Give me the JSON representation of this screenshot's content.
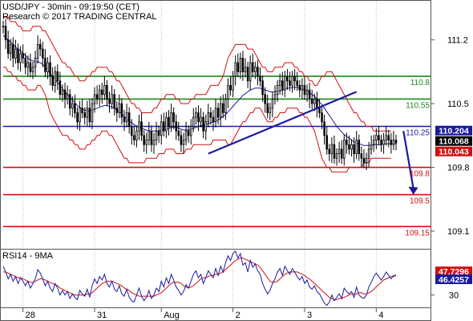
{
  "header": {
    "title": "USD/JPY - 30min - 09:19:50 (CET)",
    "copyright": "Research © 2017 TRADING CENTRAL"
  },
  "colors": {
    "resistance": "#1a8a1a",
    "pivot": "#1a1aa0",
    "support": "#d01010",
    "price": "#000000",
    "bollinger": "#d01010",
    "moving_average": "#1a1aa0",
    "rsi": "#1a1aa0",
    "rsi_signal": "#d01010",
    "trendline": "#1a1aa0",
    "arrow": "#1a1aa0",
    "grid": "#bbbbbb"
  },
  "chart_data": [
    {
      "type": "candlestick",
      "title": "USD/JPY - 30min - 09:19:50 (CET)",
      "ylim": [
        108.95,
        111.55
      ],
      "y_ticks": [
        109.1,
        109.8,
        110.5,
        111.2
      ],
      "x_ticks": [
        "28",
        "31",
        "Aug",
        "2",
        "3",
        "4"
      ],
      "x_tick_index": [
        8,
        37,
        64,
        93,
        122,
        151
      ],
      "close": [
        111.35,
        111.2,
        111.05,
        111.15,
        111.0,
        111.1,
        110.95,
        111.05,
        111.0,
        110.9,
        110.95,
        110.85,
        110.9,
        111.0,
        111.15,
        111.1,
        111.0,
        110.85,
        110.95,
        110.8,
        110.7,
        110.85,
        110.75,
        110.6,
        110.65,
        110.55,
        110.6,
        110.45,
        110.5,
        110.4,
        110.3,
        110.45,
        110.4,
        110.35,
        110.45,
        110.3,
        110.5,
        110.6,
        110.55,
        110.65,
        110.6,
        110.7,
        110.55,
        110.5,
        110.6,
        110.45,
        110.4,
        110.5,
        110.35,
        110.3,
        110.4,
        110.25,
        110.15,
        110.1,
        110.2,
        110.3,
        110.15,
        110.05,
        110.1,
        110.2,
        110.05,
        110.1,
        110.2,
        110.15,
        110.3,
        110.2,
        110.35,
        110.25,
        110.4,
        110.3,
        110.2,
        110.15,
        110.05,
        110.1,
        110.2,
        110.15,
        110.25,
        110.35,
        110.4,
        110.3,
        110.35,
        110.2,
        110.3,
        110.4,
        110.35,
        110.3,
        110.45,
        110.35,
        110.5,
        110.4,
        110.55,
        110.7,
        110.65,
        110.8,
        110.95,
        110.85,
        111.0,
        110.85,
        110.9,
        110.75,
        110.95,
        110.85,
        110.9,
        110.8,
        110.75,
        110.6,
        110.5,
        110.4,
        110.45,
        110.55,
        110.6,
        110.7,
        110.75,
        110.65,
        110.8,
        110.75,
        110.7,
        110.8,
        110.75,
        110.7,
        110.65,
        110.7,
        110.6,
        110.65,
        110.55,
        110.5,
        110.55,
        110.45,
        110.4,
        110.3,
        110.15,
        110.0,
        109.95,
        110.05,
        109.9,
        109.95,
        110.0,
        109.9,
        110.1,
        110.05,
        110.0,
        110.05,
        109.95,
        110.1,
        109.95,
        109.9,
        109.85,
        109.9,
        110.0,
        110.05,
        110.1,
        110.15,
        110.1,
        110.05,
        110.1,
        110.15,
        110.1,
        110.05,
        110.1,
        110.068
      ],
      "bollinger_upper": [
        111.45,
        111.45,
        111.45,
        111.4,
        111.4,
        111.4,
        111.35,
        111.35,
        111.3,
        111.3,
        111.3,
        111.3,
        111.35,
        111.35,
        111.35,
        111.35,
        111.3,
        111.3,
        111.25,
        111.2,
        111.15,
        111.1,
        111.05,
        111.0,
        110.95,
        110.95,
        110.9,
        110.9,
        110.85,
        110.8,
        110.8,
        110.75,
        110.75,
        110.75,
        110.8,
        110.8,
        110.85,
        110.85,
        110.9,
        110.9,
        110.9,
        110.9,
        110.9,
        110.85,
        110.85,
        110.8,
        110.75,
        110.75,
        110.7,
        110.65,
        110.6,
        110.55,
        110.5,
        110.5,
        110.45,
        110.45,
        110.4,
        110.4,
        110.4,
        110.4,
        110.4,
        110.45,
        110.45,
        110.5,
        110.55,
        110.55,
        110.6,
        110.6,
        110.6,
        110.6,
        110.55,
        110.55,
        110.5,
        110.5,
        110.5,
        110.5,
        110.55,
        110.55,
        110.6,
        110.6,
        110.6,
        110.6,
        110.6,
        110.65,
        110.7,
        110.7,
        110.7,
        110.7,
        110.75,
        110.8,
        110.9,
        111.0,
        111.05,
        111.1,
        111.15,
        111.15,
        111.15,
        111.15,
        111.15,
        111.1,
        111.1,
        111.1,
        111.05,
        111.0,
        110.95,
        110.9,
        110.9,
        110.85,
        110.85,
        110.85,
        110.9,
        110.9,
        110.9,
        110.9,
        110.95,
        110.95,
        110.95,
        110.95,
        110.9,
        110.9,
        110.85,
        110.85,
        110.8,
        110.8,
        110.75,
        110.75,
        110.7,
        110.7,
        110.75,
        110.8,
        110.8,
        110.85,
        110.85,
        110.85,
        110.8,
        110.75,
        110.7,
        110.65,
        110.6,
        110.55,
        110.5,
        110.45,
        110.4,
        110.4,
        110.35,
        110.3,
        110.3,
        110.25,
        110.25,
        110.25,
        110.2,
        110.2,
        110.2,
        110.2,
        110.2,
        110.2,
        110.2,
        110.2
      ],
      "bollinger_lower": [
        110.9,
        110.9,
        110.85,
        110.85,
        110.8,
        110.8,
        110.75,
        110.75,
        110.7,
        110.7,
        110.65,
        110.65,
        110.65,
        110.65,
        110.7,
        110.7,
        110.65,
        110.6,
        110.5,
        110.4,
        110.35,
        110.3,
        110.25,
        110.2,
        110.15,
        110.15,
        110.15,
        110.1,
        110.1,
        110.05,
        110.05,
        110.0,
        110.0,
        110.0,
        110.05,
        110.05,
        110.1,
        110.1,
        110.15,
        110.15,
        110.2,
        110.2,
        110.2,
        110.15,
        110.15,
        110.1,
        110.05,
        110.0,
        109.95,
        109.9,
        109.9,
        109.85,
        109.85,
        109.85,
        109.85,
        109.85,
        109.85,
        109.85,
        109.9,
        109.9,
        109.9,
        109.9,
        109.9,
        109.95,
        109.95,
        109.95,
        110.0,
        110.0,
        110.0,
        110.0,
        109.95,
        109.95,
        109.95,
        109.95,
        110.0,
        110.0,
        110.0,
        110.05,
        110.05,
        110.05,
        110.05,
        110.05,
        110.05,
        110.05,
        110.05,
        110.1,
        110.1,
        110.1,
        110.1,
        110.1,
        110.1,
        110.05,
        110.05,
        110.1,
        110.15,
        110.2,
        110.25,
        110.3,
        110.3,
        110.35,
        110.4,
        110.4,
        110.45,
        110.45,
        110.45,
        110.4,
        110.35,
        110.3,
        110.3,
        110.3,
        110.35,
        110.35,
        110.4,
        110.4,
        110.4,
        110.45,
        110.45,
        110.45,
        110.45,
        110.45,
        110.4,
        110.4,
        110.35,
        110.35,
        110.3,
        110.25,
        110.2,
        110.1,
        110.0,
        109.9,
        109.85,
        109.8,
        109.8,
        109.75,
        109.75,
        109.75,
        109.75,
        109.75,
        109.75,
        109.75,
        109.8,
        109.8,
        109.8,
        109.8,
        109.8,
        109.8,
        109.85,
        109.85,
        109.85,
        109.9,
        109.9,
        109.9,
        109.9,
        109.9,
        109.9,
        109.9,
        109.9,
        109.9
      ],
      "moving_average": [
        111.25,
        111.22,
        111.2,
        111.18,
        111.15,
        111.12,
        111.1,
        111.08,
        111.05,
        111.03,
        111.0,
        110.98,
        110.97,
        110.96,
        110.96,
        110.95,
        110.93,
        110.9,
        110.87,
        110.83,
        110.8,
        110.77,
        110.73,
        110.7,
        110.66,
        110.63,
        110.6,
        110.57,
        110.54,
        110.51,
        110.48,
        110.46,
        110.44,
        110.43,
        110.42,
        110.42,
        110.43,
        110.44,
        110.45,
        110.46,
        110.47,
        110.48,
        110.48,
        110.47,
        110.46,
        110.45,
        110.43,
        110.41,
        110.39,
        110.36,
        110.33,
        110.31,
        110.29,
        110.27,
        110.25,
        110.24,
        110.23,
        110.22,
        110.21,
        110.2,
        110.2,
        110.2,
        110.2,
        110.2,
        110.21,
        110.21,
        110.22,
        110.23,
        110.24,
        110.24,
        110.24,
        110.23,
        110.22,
        110.21,
        110.21,
        110.21,
        110.22,
        110.23,
        110.24,
        110.25,
        110.26,
        110.26,
        110.27,
        110.28,
        110.29,
        110.3,
        110.31,
        110.32,
        110.34,
        110.36,
        110.38,
        110.41,
        110.44,
        110.47,
        110.5,
        110.53,
        110.56,
        110.59,
        110.61,
        110.63,
        110.65,
        110.66,
        110.67,
        110.67,
        110.67,
        110.66,
        110.65,
        110.64,
        110.63,
        110.63,
        110.63,
        110.64,
        110.64,
        110.65,
        110.66,
        110.67,
        110.67,
        110.68,
        110.68,
        110.68,
        110.67,
        110.66,
        110.65,
        110.64,
        110.62,
        110.6,
        110.58,
        110.55,
        110.52,
        110.49,
        110.45,
        110.41,
        110.37,
        110.33,
        110.29,
        110.25,
        110.22,
        110.19,
        110.16,
        110.14,
        110.12,
        110.1,
        110.08,
        110.07,
        110.06,
        110.05,
        110.04,
        110.04,
        110.04,
        110.04,
        110.05,
        110.05,
        110.05,
        110.05,
        110.06,
        110.06,
        110.06,
        110.06,
        110.06,
        110.06
      ],
      "horizontal_levels": [
        {
          "value": 110.8,
          "label": "110.8",
          "kind": "resistance"
        },
        {
          "value": 110.55,
          "label": "110.55",
          "kind": "resistance"
        },
        {
          "value": 110.25,
          "label": "110.25",
          "kind": "pivot"
        },
        {
          "value": 109.8,
          "label": "109.8",
          "kind": "support"
        },
        {
          "value": 109.5,
          "label": "109.5",
          "kind": "support"
        },
        {
          "value": 109.15,
          "label": "109.15",
          "kind": "support"
        }
      ],
      "trendline": {
        "from": [
          83,
          109.95
        ],
        "to": [
          143,
          110.63
        ]
      },
      "arrow": {
        "from": [
          162,
          110.2
        ],
        "to": [
          166,
          109.5
        ]
      },
      "price_tags": [
        {
          "value": 110.204,
          "label": "110.204",
          "kind": "pivot"
        },
        {
          "value": 110.068,
          "label": "110.068",
          "kind": "price"
        },
        {
          "value": 110.043,
          "label": "110.043",
          "kind": "support"
        }
      ]
    },
    {
      "type": "line",
      "title": "RSI14 - 9MA",
      "ylim": [
        20,
        68
      ],
      "y_ticks": [
        30
      ],
      "series": [
        {
          "name": "RSI14",
          "values": [
            55,
            50,
            44,
            48,
            42,
            46,
            40,
            45,
            42,
            38,
            42,
            36,
            40,
            44,
            52,
            49,
            44,
            38,
            42,
            36,
            33,
            40,
            36,
            30,
            34,
            30,
            33,
            27,
            31,
            28,
            26,
            34,
            31,
            29,
            35,
            28,
            38,
            44,
            40,
            46,
            43,
            48,
            40,
            37,
            42,
            35,
            33,
            38,
            31,
            29,
            35,
            28,
            25,
            24,
            30,
            36,
            29,
            25,
            28,
            34,
            27,
            30,
            36,
            33,
            42,
            37,
            45,
            40,
            48,
            43,
            37,
            34,
            30,
            33,
            39,
            36,
            42,
            48,
            51,
            45,
            48,
            40,
            45,
            51,
            48,
            45,
            53,
            47,
            55,
            50,
            58,
            64,
            60,
            66,
            68,
            62,
            66,
            56,
            58,
            50,
            60,
            54,
            57,
            51,
            48,
            40,
            35,
            31,
            34,
            40,
            44,
            50,
            53,
            47,
            55,
            51,
            48,
            53,
            50,
            46,
            43,
            46,
            40,
            43,
            37,
            35,
            38,
            33,
            31,
            27,
            23,
            21,
            24,
            30,
            25,
            28,
            31,
            27,
            36,
            33,
            31,
            33,
            28,
            37,
            30,
            28,
            27,
            30,
            37,
            41,
            46,
            49,
            46,
            43,
            46,
            50,
            47,
            44,
            47,
            46.43
          ]
        },
        {
          "name": "9MA",
          "values": [
            50,
            50,
            49,
            48,
            47,
            46,
            45,
            45,
            44,
            43,
            42,
            41,
            41,
            42,
            43,
            44,
            44,
            43,
            42,
            41,
            40,
            39,
            38,
            36,
            35,
            34,
            33,
            32,
            31,
            30,
            30,
            30,
            30,
            30,
            31,
            31,
            32,
            34,
            36,
            38,
            40,
            41,
            42,
            42,
            42,
            41,
            40,
            39,
            38,
            36,
            35,
            34,
            32,
            31,
            30,
            29,
            29,
            29,
            29,
            29,
            29,
            29,
            30,
            31,
            32,
            34,
            36,
            38,
            40,
            41,
            41,
            41,
            40,
            38,
            37,
            36,
            37,
            38,
            40,
            42,
            44,
            45,
            45,
            46,
            47,
            47,
            48,
            48,
            49,
            50,
            52,
            54,
            56,
            58,
            60,
            61,
            62,
            62,
            61,
            60,
            59,
            58,
            57,
            56,
            54,
            51,
            48,
            45,
            42,
            41,
            41,
            42,
            44,
            46,
            48,
            49,
            50,
            50,
            50,
            50,
            49,
            48,
            47,
            45,
            44,
            42,
            40,
            38,
            36,
            34,
            32,
            30,
            28,
            27,
            26,
            26,
            27,
            27,
            28,
            29,
            30,
            31,
            31,
            31,
            32,
            32,
            31,
            31,
            32,
            33,
            35,
            37,
            39,
            41,
            43,
            44,
            45,
            46,
            46,
            47.73
          ]
        }
      ],
      "value_tags": [
        {
          "value": 47.7296,
          "label": "47.7296",
          "kind": "signal"
        },
        {
          "value": 46.4257,
          "label": "46.4257",
          "kind": "rsi"
        }
      ]
    }
  ]
}
